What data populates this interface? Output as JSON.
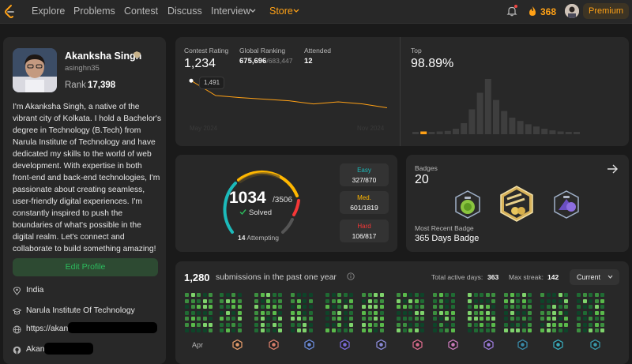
{
  "nav": {
    "items": [
      "Explore",
      "Problems",
      "Contest",
      "Discuss",
      "Interview",
      "Store"
    ],
    "streak_count": "368",
    "premium_label": "Premium"
  },
  "profile": {
    "name": "Akanksha Singh",
    "username": "asinghn35",
    "rank_label": "Rank",
    "rank_value": "17,398",
    "bio": "I'm Akanksha Singh, a native of the vibrant city of Kolkata. I hold a Bachelor's degree in Technology (B.Tech) from Narula Institute of Technology and have dedicated my skills to the world of web development. With expertise in both front-end and back-end technologies, I'm passionate about creating seamless, user-friendly digital experiences. I'm constantly inspired to push the boundaries of what's possible in the digital realm. Let's connect and collaborate to build something amazing!",
    "edit_label": "Edit Profile",
    "location": "India",
    "school": "Narula Institute Of Technology",
    "website": "https://akan",
    "github": "Akan"
  },
  "contest": {
    "rating_label": "Contest Rating",
    "rating_value": "1,234",
    "global_label": "Global Ranking",
    "global_value": "675,696",
    "global_total": "/683,447",
    "attended_label": "Attended",
    "attended_value": "12",
    "tooltip_value": "1,491",
    "axis_start": "May 2024",
    "axis_end": "Nov 2024",
    "top_label": "Top",
    "top_value": "98.89%",
    "histogram": [
      0.04,
      0.05,
      0.04,
      0.05,
      0.06,
      0.1,
      0.2,
      0.45,
      0.75,
      1.0,
      0.62,
      0.42,
      0.3,
      0.24,
      0.18,
      0.14,
      0.1,
      0.07,
      0.05,
      0.04,
      0.04
    ],
    "highlight_index": 1,
    "line_points": [
      1491,
      1350,
      1330,
      1315,
      1300,
      1270,
      1290,
      1270,
      1234
    ]
  },
  "solved": {
    "solved_count": "1034",
    "total": "/3506",
    "solved_label": "Solved",
    "attempting_count": "14",
    "attempting_label": "Attempting",
    "easy_label": "Easy",
    "easy_value": "327/870",
    "med_label": "Med.",
    "med_value": "601/1819",
    "hard_label": "Hard",
    "hard_value": "106/817",
    "easy_color": "#1cbaba",
    "med_color": "#ffb700",
    "hard_color": "#f63737"
  },
  "badges": {
    "label": "Badges",
    "count": "20",
    "recent_label": "Most Recent Badge",
    "recent_name": "365 Days Badge"
  },
  "submissions": {
    "count": "1,280",
    "label": "submissions in the past one year",
    "active_label": "Total active days:",
    "active_value": "363",
    "streak_label": "Max streak:",
    "streak_value": "142",
    "current_label": "Current",
    "first_month": "Apr"
  }
}
